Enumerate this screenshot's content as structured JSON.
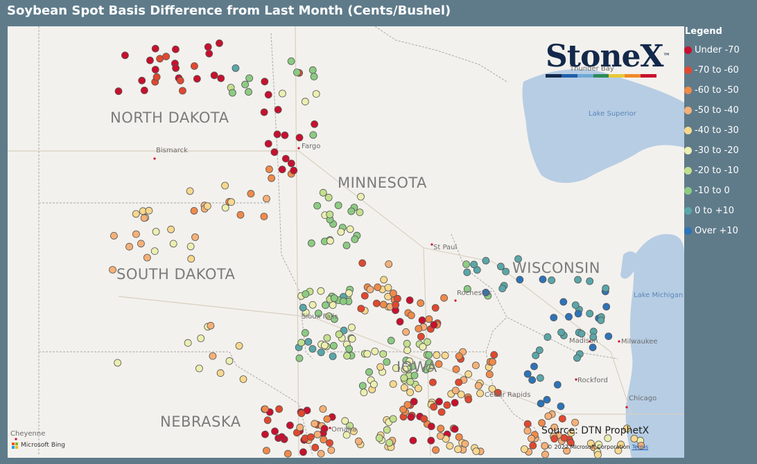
{
  "title": "Soybean Spot Basis Difference from Last Month (Cents/Bushel)",
  "legend": {
    "title": "Legend",
    "items": [
      {
        "label": "Under -70",
        "color": "#c8102e"
      },
      {
        "label": "-70 to -60",
        "color": "#e0492f"
      },
      {
        "label": "-60 to -50",
        "color": "#ef8a4a"
      },
      {
        "label": "-50 to -40",
        "color": "#f5b077"
      },
      {
        "label": "-40 to -30",
        "color": "#f8d88e"
      },
      {
        "label": "-30 to -20",
        "color": "#ecefb0"
      },
      {
        "label": "-20 to -10",
        "color": "#c3e08e"
      },
      {
        "label": "-10 to 0",
        "color": "#8ccb83"
      },
      {
        "label": "0 to +10",
        "color": "#5aa6a8"
      },
      {
        "label": "Over +10",
        "color": "#2e73b8"
      }
    ]
  },
  "logo": {
    "text": "StoneX",
    "trademark": "™",
    "bar_colors": [
      "#13294b",
      "#1f5fa8",
      "#6fa8d6",
      "#2e8b57",
      "#e7c93b",
      "#f08a28",
      "#c8102e"
    ]
  },
  "map": {
    "state_labels": {
      "north_dakota": "NORTH DAKOTA",
      "south_dakota": "SOUTH DAKOTA",
      "minnesota": "MINNESOTA",
      "wisconsin": "WISCONSIN",
      "iowa": "IOWA",
      "nebraska": "NEBRASKA"
    },
    "city_labels": {
      "bismarck": "Bismarck",
      "fargo": "Fargo",
      "st_paul": "St Paul",
      "rochester": "Rochester",
      "madison": "Madison",
      "milwaukee": "Milwaukee",
      "rockford": "Rockford",
      "chicago": "Chicago",
      "cedar_rapids": "Cedar Rapids",
      "omaha": "Omaha",
      "sioux_falls": "Sioux Falls",
      "thunder_bay": "Thunder Bay",
      "cheyenne": "Cheyenne"
    },
    "water_labels": {
      "lake_superior": "Lake Superior",
      "lake_michigan": "Lake Michigan"
    }
  },
  "source": "Source: DTN ProphetX",
  "copyright": "© 2022 Microsoft Corporation",
  "terms": "Terms",
  "bing": "Microsoft Bing"
}
